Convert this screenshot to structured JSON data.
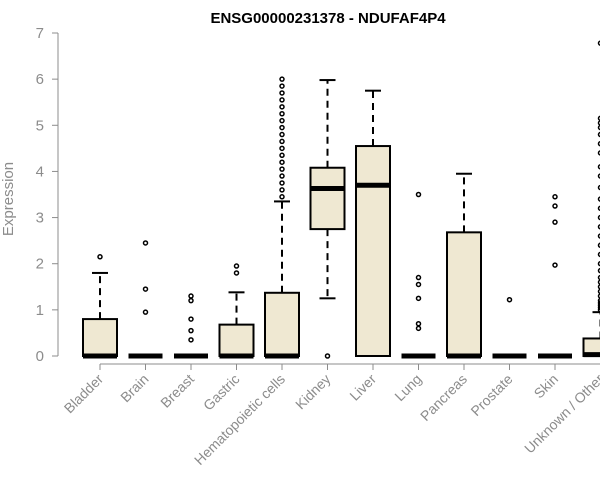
{
  "chart_data": {
    "type": "boxplot",
    "title": "ENSG00000231378 - NDUFAF4P4",
    "xlabel": "",
    "ylabel": "Expression",
    "ylim": [
      0,
      7
    ],
    "yticks": [
      0,
      1,
      2,
      3,
      4,
      5,
      6,
      7
    ],
    "box_fill": "#efe8d2",
    "stroke_color": "#000000",
    "axis_color": "#8c8c8c",
    "categories": [
      "Bladder",
      "Brain",
      "Breast",
      "Gastric",
      "Hematopoietic cells",
      "Kidney",
      "Liver",
      "Lung",
      "Pancreas",
      "Prostate",
      "Skin",
      "Unknown / Other"
    ],
    "boxes": [
      {
        "category": "Bladder",
        "q1": 0,
        "median": 0,
        "q3": 0.8,
        "whisker_low": 0,
        "whisker_high": 1.8,
        "outliers": [
          2.15
        ]
      },
      {
        "category": "Brain",
        "q1": 0,
        "median": 0,
        "q3": 0,
        "whisker_low": 0,
        "whisker_high": 0,
        "outliers": [
          0.95,
          1.45,
          2.45
        ]
      },
      {
        "category": "Breast",
        "q1": 0,
        "median": 0,
        "q3": 0,
        "whisker_low": 0,
        "whisker_high": 0,
        "outliers": [
          0.35,
          0.55,
          0.8,
          1.2,
          1.3
        ]
      },
      {
        "category": "Gastric",
        "q1": 0,
        "median": 0,
        "q3": 0.68,
        "whisker_low": 0,
        "whisker_high": 1.38,
        "outliers": [
          1.8,
          1.95
        ]
      },
      {
        "category": "Hematopoietic cells",
        "q1": 0,
        "median": 0,
        "q3": 1.37,
        "whisker_low": 0,
        "whisker_high": 3.35,
        "outliers": [
          3.45,
          3.6,
          3.75,
          3.9,
          4.05,
          4.2,
          4.35,
          4.5,
          4.65,
          4.8,
          4.95,
          5.1,
          5.25,
          5.4,
          5.55,
          5.7,
          5.85,
          6.0
        ]
      },
      {
        "category": "Kidney",
        "q1": 2.75,
        "median": 3.63,
        "q3": 4.08,
        "whisker_low": 1.25,
        "whisker_high": 5.98,
        "outliers": [
          0
        ]
      },
      {
        "category": "Liver",
        "q1": 0,
        "median": 3.7,
        "q3": 4.55,
        "whisker_low": 0,
        "whisker_high": 5.75,
        "outliers": []
      },
      {
        "category": "Lung",
        "q1": 0,
        "median": 0,
        "q3": 0,
        "whisker_low": 0,
        "whisker_high": 0,
        "outliers": [
          0.6,
          0.7,
          1.25,
          1.55,
          1.7,
          3.5
        ]
      },
      {
        "category": "Pancreas",
        "q1": 0,
        "median": 0,
        "q3": 2.68,
        "whisker_low": 0,
        "whisker_high": 3.95,
        "outliers": []
      },
      {
        "category": "Prostate",
        "q1": 0,
        "median": 0,
        "q3": 0,
        "whisker_low": 0,
        "whisker_high": 0,
        "outliers": [
          1.22
        ]
      },
      {
        "category": "Skin",
        "q1": 0,
        "median": 0,
        "q3": 0,
        "whisker_low": 0,
        "whisker_high": 0,
        "outliers": [
          1.97,
          2.9,
          3.25,
          3.45
        ]
      },
      {
        "category": "Unknown / Other",
        "q1": 0,
        "median": 0.03,
        "q3": 0.38,
        "whisker_low": 0,
        "whisker_high": 0.95,
        "outliers": [
          1.0,
          1.05,
          1.1,
          1.15,
          1.2,
          1.3,
          1.4,
          1.5,
          1.6,
          1.7,
          1.85,
          2.0,
          2.2,
          2.4,
          2.6,
          2.8,
          3.0,
          3.2,
          3.4,
          3.65,
          3.9,
          4.1,
          4.4,
          4.6,
          4.8,
          4.95,
          5.05,
          5.15,
          6.78
        ]
      }
    ]
  }
}
